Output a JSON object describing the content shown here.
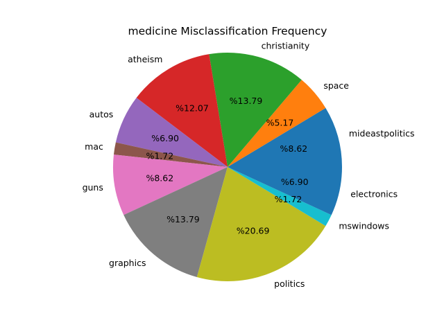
{
  "chart_data": {
    "type": "pie",
    "title": "medicine Misclassification Frequency",
    "start_angle_deg": 0,
    "direction": "counterclockwise",
    "pct_format": "%",
    "slices": [
      {
        "label": "mideastpolitics",
        "value": 8.62,
        "pct_text": "%8.62",
        "color": "#1f77b4"
      },
      {
        "label": "space",
        "value": 5.17,
        "pct_text": "%5.17",
        "color": "#ff7f0e"
      },
      {
        "label": "christianity",
        "value": 13.79,
        "pct_text": "%13.79",
        "color": "#2ca02c"
      },
      {
        "label": "atheism",
        "value": 12.07,
        "pct_text": "%12.07",
        "color": "#d62728"
      },
      {
        "label": "autos",
        "value": 6.9,
        "pct_text": "%6.90",
        "color": "#9467bd"
      },
      {
        "label": "mac",
        "value": 1.72,
        "pct_text": "%1.72",
        "color": "#8c564b"
      },
      {
        "label": "guns",
        "value": 8.62,
        "pct_text": "%8.62",
        "color": "#e377c2"
      },
      {
        "label": "graphics",
        "value": 13.79,
        "pct_text": "%13.79",
        "color": "#7f7f7f"
      },
      {
        "label": "politics",
        "value": 20.69,
        "pct_text": "%20.69",
        "color": "#bcbd22"
      },
      {
        "label": "mswindows",
        "value": 1.72,
        "pct_text": "%1.72",
        "color": "#17becf"
      },
      {
        "label": "electronics",
        "value": 6.9,
        "pct_text": "%6.90",
        "color": "#1f77b4"
      }
    ]
  }
}
